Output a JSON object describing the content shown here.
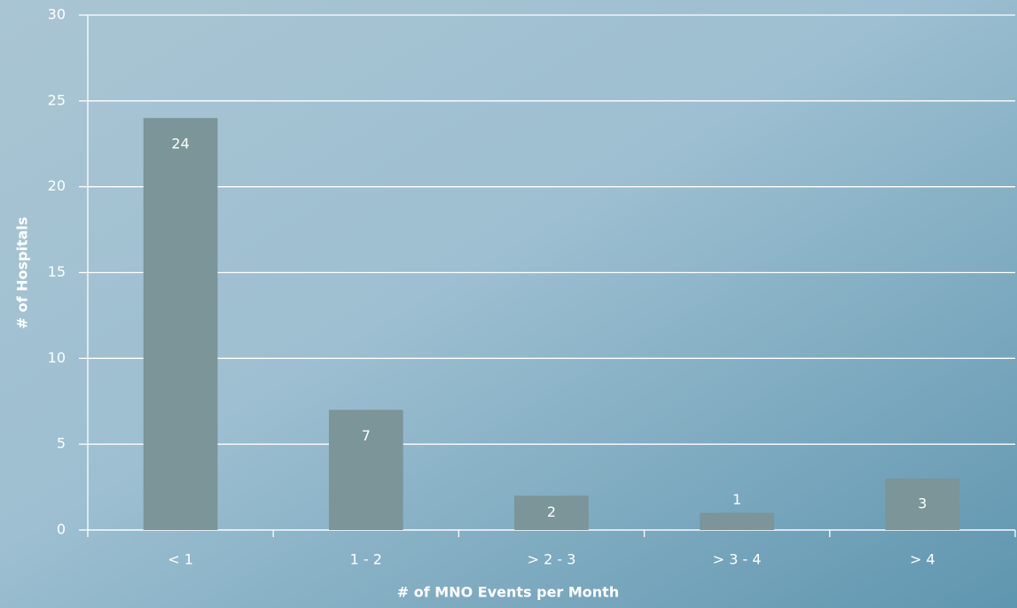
{
  "chart_data": {
    "type": "bar",
    "x_label": "# of MNO Events per Month",
    "y_label": "# of Hospitals",
    "categories": [
      "< 1",
      "1 - 2",
      "> 2 - 3",
      "> 3 - 4",
      "> 4"
    ],
    "values": [
      24,
      7,
      2,
      1,
      3
    ],
    "color": "#7b9598",
    "ylim": [
      0,
      30
    ],
    "yticks": [
      0,
      5,
      10,
      15,
      20,
      25,
      30
    ],
    "grid": true
  }
}
